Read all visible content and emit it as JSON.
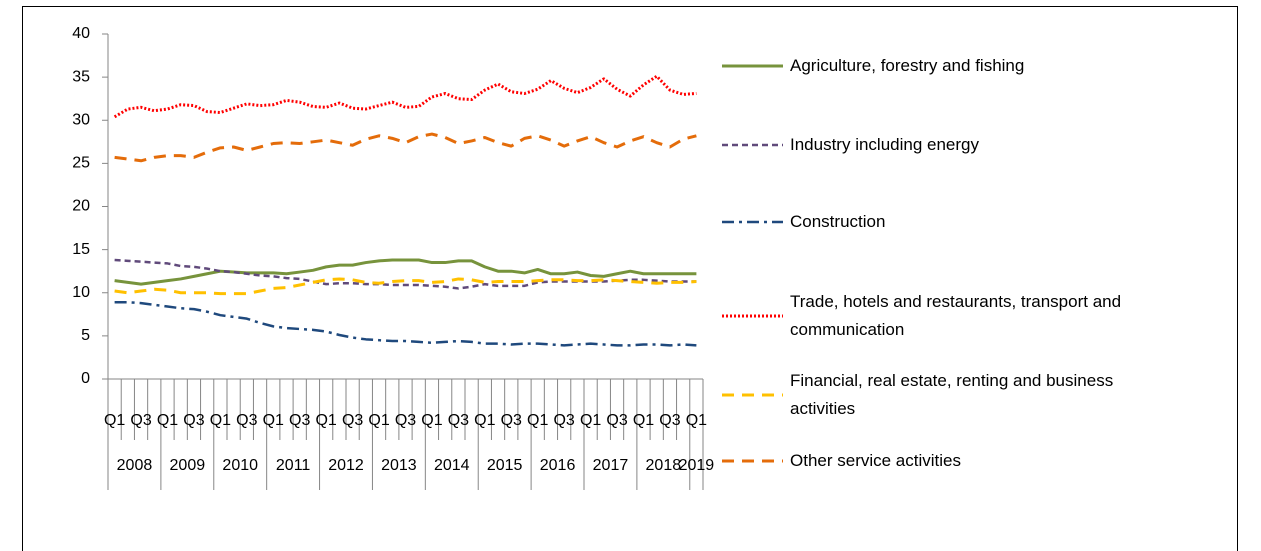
{
  "chart_data": {
    "type": "line",
    "categories": [
      "Q1",
      null,
      "Q3",
      null,
      "Q1",
      null,
      "Q3",
      null,
      "Q1",
      null,
      "Q3",
      null,
      "Q1",
      null,
      "Q3",
      null,
      "Q1",
      null,
      "Q3",
      null,
      "Q1",
      null,
      "Q3",
      null,
      "Q1",
      null,
      "Q3",
      null,
      "Q1",
      null,
      "Q3",
      null,
      "Q1",
      null,
      "Q3",
      null,
      "Q1",
      null,
      "Q3",
      null,
      "Q1",
      null,
      "Q3",
      null,
      "Q1"
    ],
    "years": [
      "2008",
      "2009",
      "2010",
      "2011",
      "2012",
      "2013",
      "2014",
      "2015",
      "2016",
      "2017",
      "2018",
      "2019"
    ],
    "ylim": [
      0,
      40
    ],
    "yticks": [
      0,
      5,
      10,
      15,
      20,
      25,
      30,
      35,
      40
    ],
    "series": [
      {
        "name": "Agriculture, forestry and fishing",
        "color": "#77933c",
        "style": "solid",
        "values": [
          11.4,
          11.2,
          11.0,
          11.2,
          11.4,
          11.6,
          11.9,
          12.2,
          12.5,
          12.4,
          12.3,
          12.3,
          12.3,
          12.2,
          12.4,
          12.6,
          13.0,
          13.2,
          13.2,
          13.5,
          13.7,
          13.8,
          13.8,
          13.8,
          13.5,
          13.5,
          13.7,
          13.7,
          13.0,
          12.5,
          12.5,
          12.3,
          12.7,
          12.2,
          12.2,
          12.4,
          12.0,
          11.9,
          12.2,
          12.5,
          12.2,
          12.2,
          12.2,
          12.2,
          12.2
        ]
      },
      {
        "name": "Industry including energy",
        "color": "#604a7b",
        "style": "dash",
        "values": [
          13.8,
          13.7,
          13.6,
          13.5,
          13.4,
          13.1,
          13.0,
          12.8,
          12.5,
          12.4,
          12.2,
          12.0,
          11.9,
          11.7,
          11.6,
          11.3,
          11.0,
          11.1,
          11.1,
          11.0,
          11.0,
          10.9,
          10.9,
          10.9,
          10.8,
          10.7,
          10.5,
          10.7,
          11.0,
          10.8,
          10.8,
          10.8,
          11.2,
          11.3,
          11.3,
          11.3,
          11.3,
          11.3,
          11.4,
          11.5,
          11.5,
          11.4,
          11.3,
          11.3,
          11.3
        ]
      },
      {
        "name": "Construction",
        "color": "#1f497d",
        "style": "dashdot",
        "values": [
          8.9,
          8.9,
          8.8,
          8.6,
          8.4,
          8.2,
          8.1,
          7.8,
          7.4,
          7.2,
          7.0,
          6.5,
          6.1,
          5.9,
          5.8,
          5.7,
          5.5,
          5.1,
          4.8,
          4.6,
          4.5,
          4.4,
          4.4,
          4.3,
          4.2,
          4.3,
          4.4,
          4.3,
          4.1,
          4.1,
          4.0,
          4.1,
          4.1,
          4.0,
          3.9,
          4.0,
          4.1,
          4.0,
          3.9,
          3.9,
          4.0,
          4.0,
          3.9,
          4.0,
          3.9
        ]
      },
      {
        "name": "Trade, hotels and restaurants, transport and communication",
        "color": "#ff0000",
        "style": "dot",
        "values": [
          30.4,
          31.3,
          31.5,
          31.1,
          31.3,
          31.8,
          31.7,
          31.0,
          30.9,
          31.4,
          31.9,
          31.7,
          31.8,
          32.3,
          32.1,
          31.6,
          31.5,
          32.0,
          31.4,
          31.3,
          31.7,
          32.1,
          31.5,
          31.6,
          32.7,
          33.1,
          32.5,
          32.4,
          33.5,
          34.2,
          33.3,
          33.1,
          33.6,
          34.6,
          33.7,
          33.2,
          33.8,
          34.8,
          33.6,
          32.8,
          34.1,
          35.1,
          33.5,
          33.0,
          33.1
        ]
      },
      {
        "name": "Financial, real estate, renting and business activities",
        "color": "#ffc000",
        "style": "longdash",
        "values": [
          10.2,
          10.0,
          10.2,
          10.4,
          10.3,
          10.0,
          10.0,
          10.0,
          9.9,
          9.9,
          9.9,
          10.2,
          10.5,
          10.6,
          10.9,
          11.2,
          11.5,
          11.6,
          11.5,
          11.2,
          11.1,
          11.3,
          11.4,
          11.4,
          11.2,
          11.3,
          11.6,
          11.5,
          11.2,
          11.3,
          11.3,
          11.3,
          11.4,
          11.5,
          11.5,
          11.4,
          11.4,
          11.5,
          11.4,
          11.3,
          11.2,
          11.1,
          11.2,
          11.2,
          11.3
        ]
      },
      {
        "name": "Other service activities",
        "color": "#e46c0a",
        "style": "longdash",
        "values": [
          25.7,
          25.5,
          25.3,
          25.7,
          25.9,
          25.9,
          25.7,
          26.3,
          26.8,
          26.9,
          26.5,
          26.9,
          27.3,
          27.4,
          27.3,
          27.5,
          27.7,
          27.4,
          27.1,
          27.8,
          28.2,
          27.9,
          27.4,
          28.1,
          28.4,
          28.0,
          27.3,
          27.6,
          28.0,
          27.4,
          27.0,
          27.9,
          28.2,
          27.7,
          27.0,
          27.6,
          28.1,
          27.4,
          26.9,
          27.6,
          28.1,
          27.4,
          26.9,
          27.8,
          28.2
        ]
      }
    ],
    "legend": "right"
  }
}
